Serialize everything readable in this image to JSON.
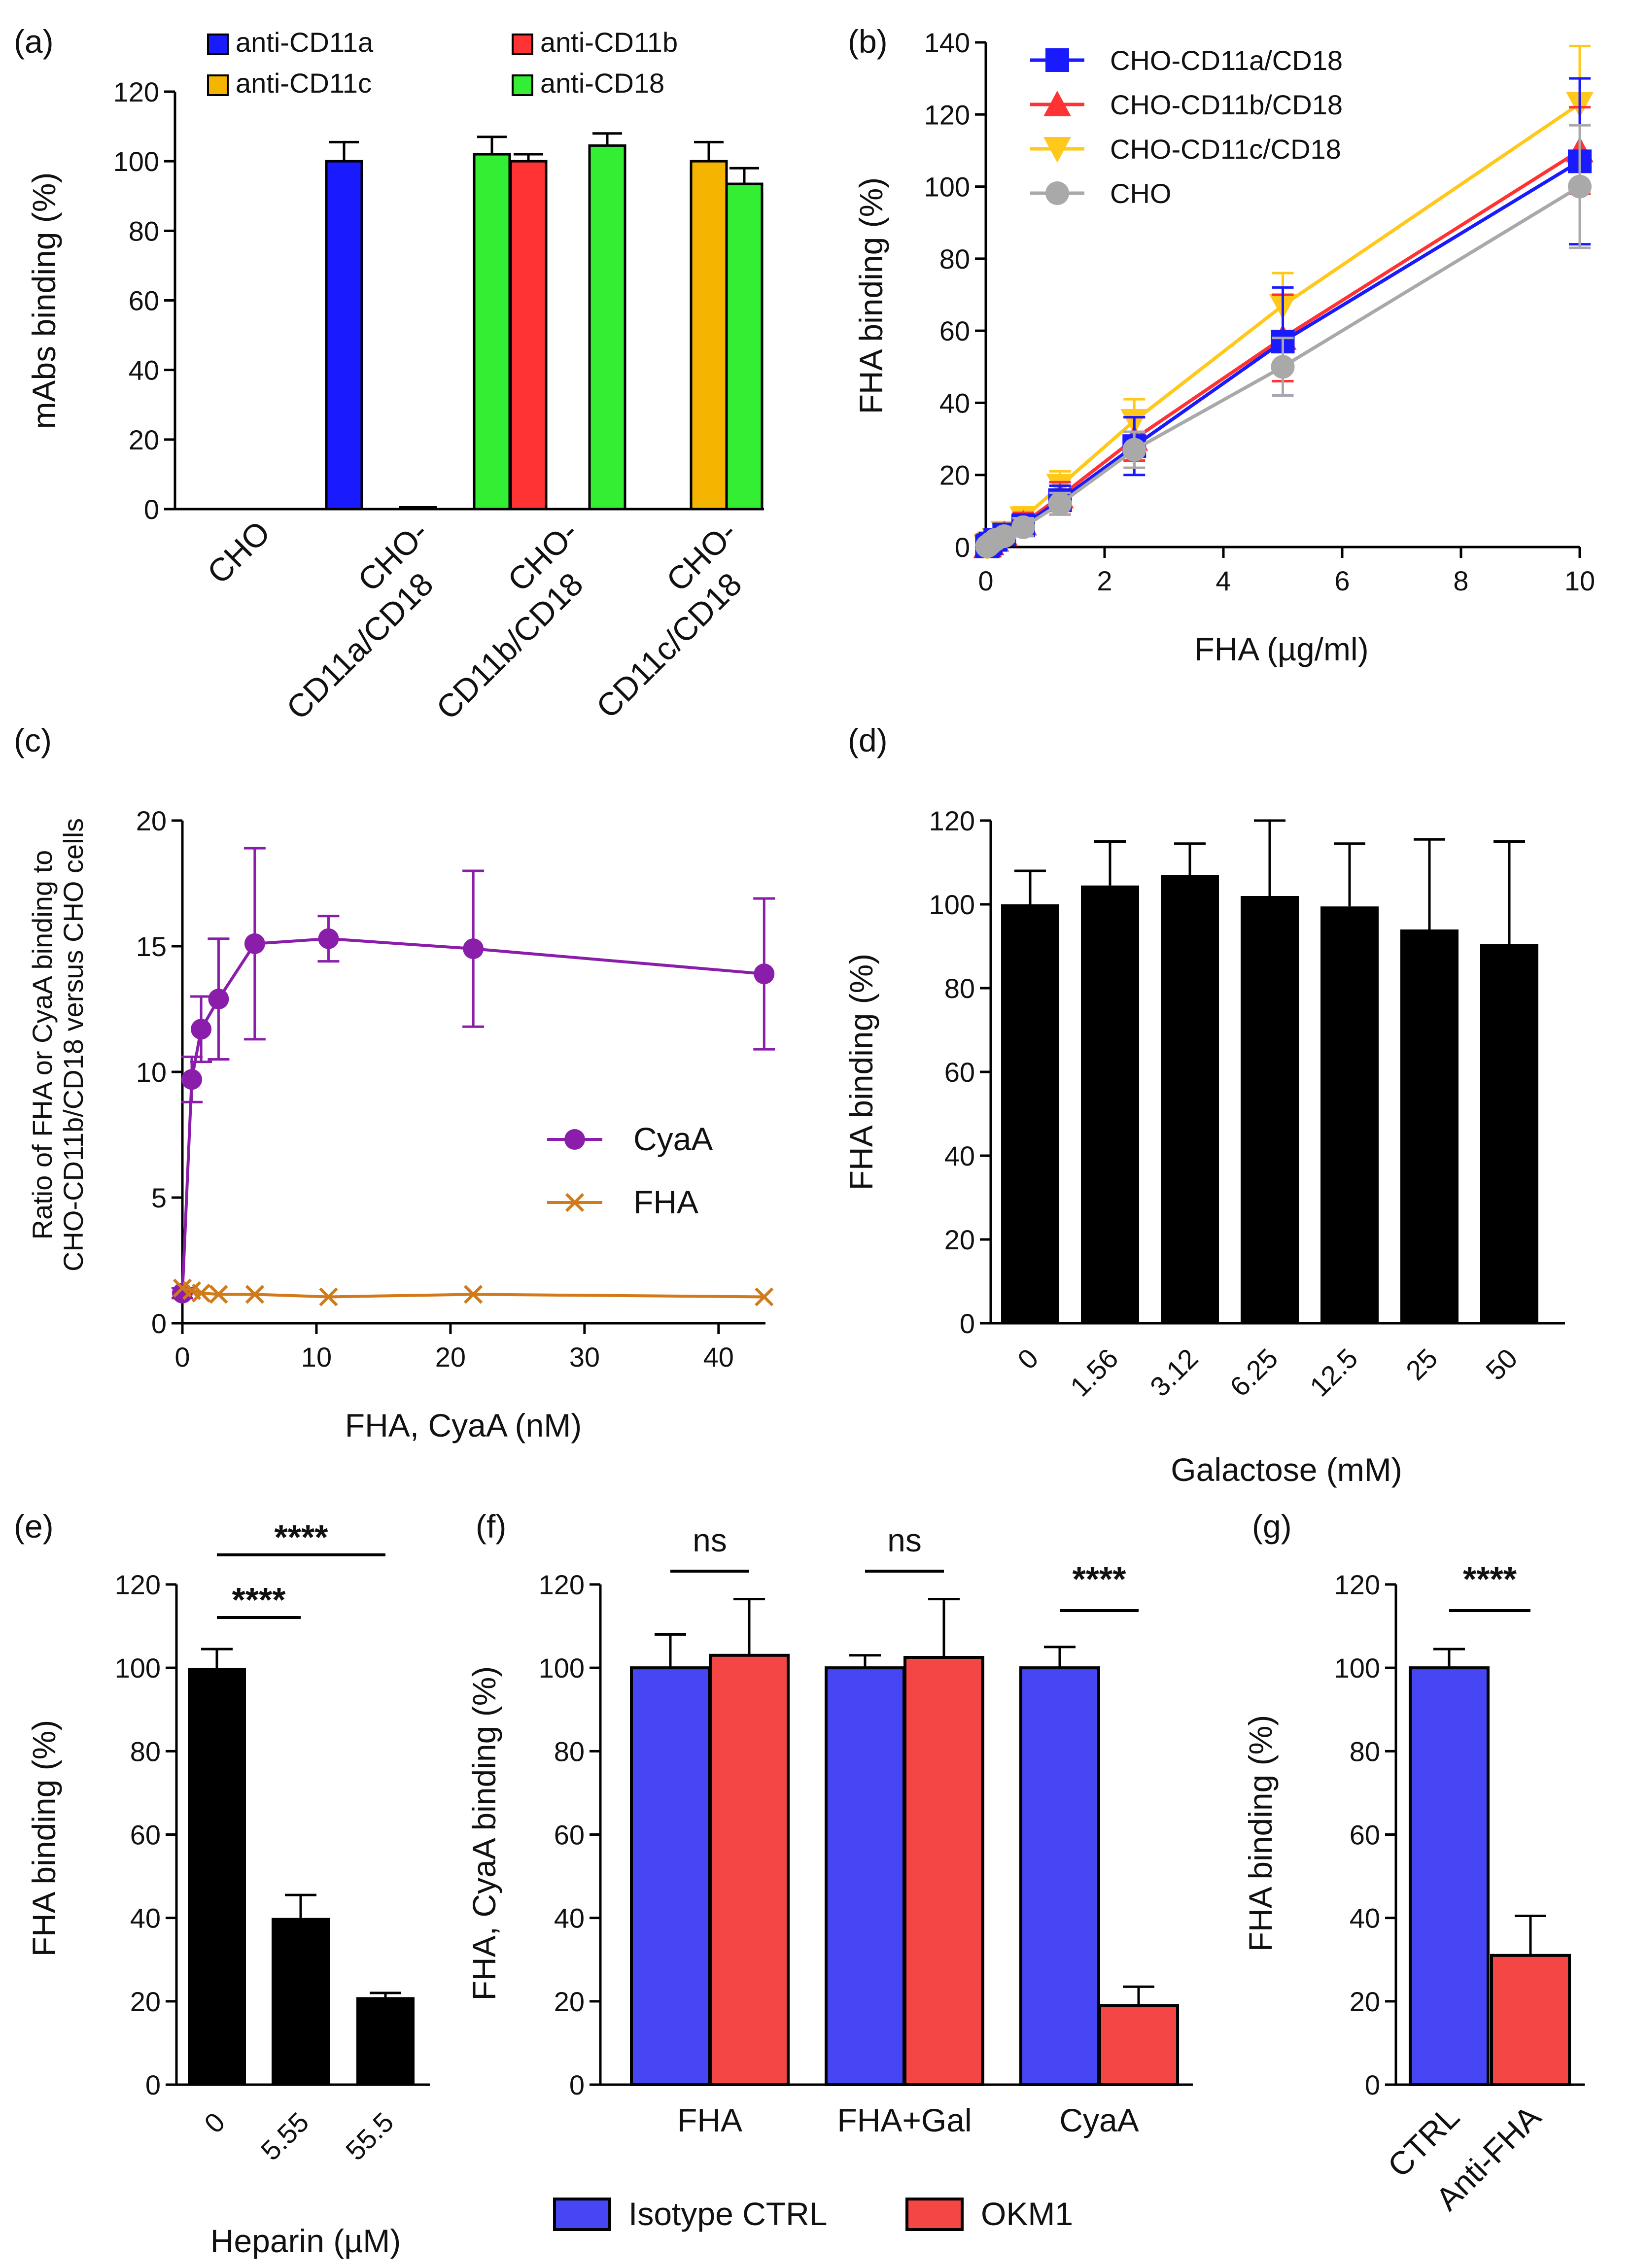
{
  "colors": {
    "blue": "#1a1aff",
    "red": "#ff3333",
    "orange": "#f5b400",
    "green": "#33ee33",
    "gray": "#a9a9a9",
    "purple": "#8a1eaa",
    "brown": "#d07a1a",
    "black": "#000000",
    "bar_blue": "#4646f5",
    "bar_red": "#f54646",
    "line_yellow": "#ffc81a"
  },
  "chart_data": [
    {
      "id": "a",
      "panel_label": "(a)",
      "type": "bar",
      "ylabel": "mAbs binding (%)",
      "ylim": [
        0,
        120
      ],
      "yticks": [
        "0",
        "20",
        "40",
        "60",
        "80",
        "100",
        "120"
      ],
      "legend": [
        {
          "name": "anti-CD11a",
          "color": "blue"
        },
        {
          "name": "anti-CD11b",
          "color": "red"
        },
        {
          "name": "anti-CD11c",
          "color": "orange"
        },
        {
          "name": "anti-CD18",
          "color": "green"
        }
      ],
      "groups": [
        {
          "label": [
            "CHO"
          ],
          "bars": [
            {
              "series": "anti-CD11a",
              "value": 0,
              "err": 0
            },
            {
              "series": "anti-CD18",
              "value": 0,
              "err": 0
            }
          ]
        },
        {
          "label": [
            "CHO-",
            "CD11a/CD18"
          ],
          "bars": [
            {
              "series": "anti-CD11a",
              "value": 100,
              "err": 5.5
            },
            {
              "series": "anti-CD11b",
              "value": 0.5,
              "err": 0
            },
            {
              "series": "anti-CD18",
              "value": 102,
              "err": 5
            }
          ]
        },
        {
          "label": [
            "CHO-",
            "CD11b/CD18"
          ],
          "bars": [
            {
              "series": "anti-CD11b",
              "value": 100,
              "err": 2
            },
            {
              "series": "anti-CD18",
              "value": 104.5,
              "err": 3.5
            }
          ]
        },
        {
          "label": [
            "CHO-",
            "CD11c/CD18"
          ],
          "bars": [
            {
              "series": "anti-CD11c",
              "value": 100,
              "err": 5.5
            },
            {
              "series": "anti-CD18",
              "value": 93.5,
              "err": 4.5
            }
          ]
        }
      ]
    },
    {
      "id": "b",
      "panel_label": "(b)",
      "type": "line",
      "xlabel": "FHA (µg/ml)",
      "ylabel": "FHA binding (%)",
      "xlim": [
        0,
        10
      ],
      "ylim": [
        0,
        140
      ],
      "xticks": [
        "0",
        "2",
        "4",
        "6",
        "8",
        "10"
      ],
      "yticks": [
        "0",
        "20",
        "40",
        "60",
        "80",
        "100",
        "120",
        "140"
      ],
      "x": [
        0.02,
        0.04,
        0.08,
        0.16,
        0.31,
        0.63,
        1.25,
        2.5,
        5,
        10
      ],
      "series": [
        {
          "name": "CHO-CD11c/CD18",
          "color": "line_yellow",
          "marker": "triangle-down",
          "values": [
            0.2,
            0.5,
            1,
            2,
            4,
            8,
            17,
            35,
            67,
            123
          ],
          "err": [
            0.5,
            0.5,
            0.7,
            1,
            2,
            3,
            4,
            6,
            9,
            16
          ]
        },
        {
          "name": "CHO-CD11b/CD18",
          "color": "red",
          "marker": "triangle-up",
          "values": [
            0.2,
            0.5,
            1,
            2,
            3.5,
            6.5,
            14,
            30,
            58,
            110
          ],
          "err": [
            0.5,
            0.5,
            0.7,
            1,
            2,
            3,
            4,
            6,
            12,
            12
          ]
        },
        {
          "name": "CHO-CD11a/CD18",
          "color": "blue",
          "marker": "square",
          "values": [
            0.2,
            0.5,
            1,
            2,
            3.5,
            6,
            13,
            28,
            57,
            107
          ],
          "err": [
            0.5,
            0.5,
            0.7,
            1,
            2,
            3,
            4,
            8,
            15,
            23
          ]
        },
        {
          "name": "CHO",
          "color": "gray",
          "marker": "circle",
          "values": [
            0.2,
            0.4,
            1,
            2,
            3,
            5.5,
            12,
            27,
            50,
            100
          ],
          "err": [
            0.5,
            0.5,
            0.7,
            1,
            1.5,
            2.5,
            3,
            5,
            8,
            17
          ]
        }
      ],
      "legend_order": [
        "CHO-CD11a/CD18",
        "CHO-CD11b/CD18",
        "CHO-CD11c/CD18",
        "CHO"
      ]
    },
    {
      "id": "c",
      "panel_label": "(c)",
      "type": "line",
      "xlabel": "FHA, CyaA (nM)",
      "ylabel_lines": [
        "Ratio of FHA or CyaA binding to",
        "CHO-CD11b/CD18 versus CHO cells"
      ],
      "xlim": [
        0,
        43.5
      ],
      "ylim": [
        0,
        20
      ],
      "xticks": [
        "0",
        "10",
        "20",
        "30",
        "40"
      ],
      "yticks": [
        "0",
        "5",
        "10",
        "15",
        "20"
      ],
      "series": [
        {
          "name": "CyaA",
          "color": "purple",
          "marker": "circle",
          "x": [
            0,
            0.7,
            1.4,
            2.7,
            5.4,
            10.9,
            21.7,
            43.4
          ],
          "values": [
            1.2,
            9.7,
            11.7,
            12.9,
            15.1,
            15.3,
            14.9,
            13.9
          ],
          "err": [
            0.2,
            0.9,
            1.3,
            2.4,
            3.8,
            0.9,
            3.1,
            3.0
          ]
        },
        {
          "name": "FHA",
          "color": "brown",
          "marker": "cross",
          "x": [
            0,
            0.7,
            1.4,
            2.7,
            5.4,
            10.9,
            21.7,
            43.4
          ],
          "values": [
            1.4,
            1.3,
            1.2,
            1.15,
            1.15,
            1.05,
            1.15,
            1.05
          ],
          "err": [
            0,
            0,
            0,
            0,
            0,
            0,
            0,
            0
          ]
        }
      ]
    },
    {
      "id": "d",
      "panel_label": "(d)",
      "type": "bar",
      "xlabel": "Galactose (mM)",
      "ylabel": "FHA binding (%)",
      "ylim": [
        0,
        120
      ],
      "yticks": [
        "0",
        "20",
        "40",
        "60",
        "80",
        "100",
        "120"
      ],
      "categories": [
        "0",
        "1.56",
        "3.12",
        "6.25",
        "12.5",
        "25",
        "50"
      ],
      "values": [
        100,
        104.5,
        107,
        102,
        99.5,
        94,
        90.5
      ],
      "err": [
        8,
        10.5,
        7.5,
        18,
        15,
        21.5,
        24.5
      ]
    },
    {
      "id": "e",
      "panel_label": "(e)",
      "type": "bar",
      "xlabel": "Heparin (µM)",
      "ylabel": "FHA binding (%)",
      "ylim": [
        0,
        120
      ],
      "yticks": [
        "0",
        "20",
        "40",
        "60",
        "80",
        "100",
        "120"
      ],
      "categories": [
        "0",
        "5.55",
        "55.5"
      ],
      "values": [
        100,
        40,
        21
      ],
      "err": [
        4.5,
        5.5,
        1
      ],
      "significance": [
        {
          "from": 0,
          "to": 2,
          "label": "****"
        },
        {
          "from": 0,
          "to": 1,
          "label": "****"
        }
      ]
    },
    {
      "id": "f",
      "panel_label": "(f)",
      "type": "bar",
      "ylabel": "FHA, CyaA binding (%)",
      "ylim": [
        0,
        120
      ],
      "yticks": [
        "0",
        "20",
        "40",
        "60",
        "80",
        "100",
        "120"
      ],
      "categories": [
        "FHA",
        "FHA+Gal",
        "CyaA"
      ],
      "series": [
        {
          "name": "Isotype CTRL",
          "color": "bar_blue",
          "values": [
            100,
            100,
            100
          ],
          "err": [
            8,
            3,
            5
          ]
        },
        {
          "name": "OKM1",
          "color": "bar_red",
          "values": [
            103,
            102.5,
            19
          ],
          "err": [
            13.5,
            14,
            4.5
          ]
        }
      ],
      "significance": [
        {
          "group": 0,
          "label": "ns"
        },
        {
          "group": 1,
          "label": "ns"
        },
        {
          "group": 2,
          "label": "****"
        }
      ]
    },
    {
      "id": "g",
      "panel_label": "(g)",
      "type": "bar",
      "ylabel": "FHA binding (%)",
      "ylim": [
        0,
        120
      ],
      "yticks": [
        "0",
        "20",
        "40",
        "60",
        "80",
        "100",
        "120"
      ],
      "categories": [
        "CTRL",
        "Anti-FHA"
      ],
      "values": [
        100,
        31
      ],
      "err": [
        4.5,
        9.5
      ],
      "colors": [
        "bar_blue",
        "bar_red"
      ],
      "significance": [
        {
          "from": 0,
          "to": 1,
          "label": "****"
        }
      ]
    }
  ]
}
